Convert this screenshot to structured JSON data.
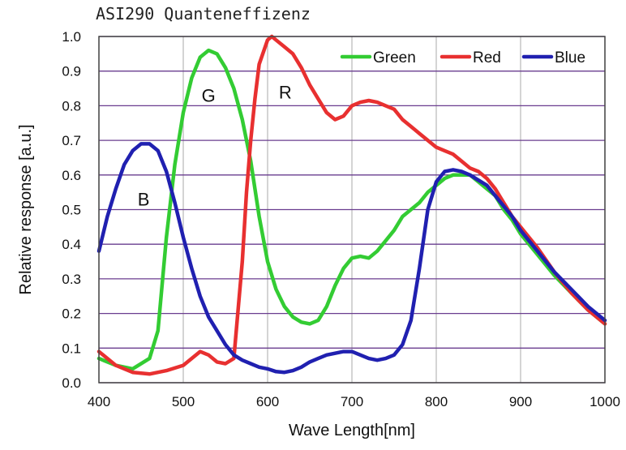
{
  "chart_data": {
    "type": "line",
    "title": "ASI290 Quanteneffizenz",
    "xlabel": "Wave Length[nm]",
    "ylabel": "Relative response [a.u.]",
    "xlim": [
      400,
      1000
    ],
    "ylim": [
      0,
      1.0
    ],
    "x_ticks": [
      "400",
      "500",
      "600",
      "700",
      "800",
      "900",
      "1000"
    ],
    "y_ticks": [
      "0.0",
      "0.1",
      "0.2",
      "0.3",
      "0.4",
      "0.5",
      "0.6",
      "0.7",
      "0.8",
      "0.9",
      "1.0"
    ],
    "grid": true,
    "legend_position": "top-right",
    "series": [
      {
        "name": "Green",
        "color": "#33cc33",
        "x": [
          400,
          420,
          440,
          460,
          470,
          480,
          490,
          500,
          510,
          520,
          530,
          540,
          550,
          560,
          570,
          580,
          590,
          600,
          610,
          620,
          630,
          640,
          650,
          660,
          670,
          680,
          690,
          700,
          710,
          720,
          730,
          740,
          750,
          760,
          770,
          780,
          790,
          800,
          810,
          820,
          830,
          840,
          850,
          860,
          870,
          880,
          890,
          900,
          920,
          940,
          960,
          980,
          1000
        ],
        "values": [
          0.07,
          0.05,
          0.04,
          0.07,
          0.15,
          0.42,
          0.63,
          0.78,
          0.88,
          0.94,
          0.96,
          0.95,
          0.91,
          0.85,
          0.76,
          0.64,
          0.48,
          0.35,
          0.27,
          0.22,
          0.19,
          0.175,
          0.17,
          0.18,
          0.22,
          0.28,
          0.33,
          0.36,
          0.365,
          0.36,
          0.38,
          0.41,
          0.44,
          0.48,
          0.5,
          0.52,
          0.55,
          0.57,
          0.59,
          0.6,
          0.6,
          0.6,
          0.58,
          0.56,
          0.54,
          0.5,
          0.47,
          0.43,
          0.37,
          0.31,
          0.26,
          0.21,
          0.17
        ]
      },
      {
        "name": "Red",
        "color": "#e83030",
        "x": [
          400,
          420,
          440,
          460,
          480,
          500,
          510,
          520,
          530,
          540,
          550,
          560,
          570,
          575,
          580,
          585,
          590,
          600,
          605,
          610,
          620,
          630,
          640,
          650,
          660,
          670,
          680,
          690,
          700,
          710,
          720,
          730,
          740,
          750,
          760,
          770,
          780,
          790,
          800,
          810,
          820,
          830,
          840,
          850,
          860,
          870,
          880,
          890,
          900,
          920,
          940,
          960,
          980,
          1000
        ],
        "values": [
          0.09,
          0.05,
          0.03,
          0.025,
          0.035,
          0.05,
          0.07,
          0.09,
          0.08,
          0.06,
          0.055,
          0.07,
          0.35,
          0.55,
          0.7,
          0.82,
          0.92,
          0.99,
          1.0,
          0.99,
          0.97,
          0.95,
          0.91,
          0.86,
          0.82,
          0.78,
          0.76,
          0.77,
          0.8,
          0.81,
          0.815,
          0.81,
          0.8,
          0.79,
          0.76,
          0.74,
          0.72,
          0.7,
          0.68,
          0.67,
          0.66,
          0.64,
          0.62,
          0.61,
          0.59,
          0.56,
          0.52,
          0.48,
          0.45,
          0.39,
          0.32,
          0.26,
          0.21,
          0.17
        ]
      },
      {
        "name": "Blue",
        "color": "#2020b0",
        "x": [
          400,
          410,
          420,
          430,
          440,
          450,
          460,
          470,
          480,
          490,
          500,
          510,
          520,
          530,
          540,
          550,
          560,
          570,
          580,
          590,
          600,
          610,
          620,
          630,
          640,
          650,
          660,
          670,
          680,
          690,
          700,
          710,
          720,
          730,
          740,
          750,
          760,
          770,
          780,
          790,
          800,
          810,
          820,
          830,
          840,
          850,
          860,
          870,
          880,
          890,
          900,
          920,
          940,
          960,
          980,
          1000
        ],
        "values": [
          0.38,
          0.48,
          0.56,
          0.63,
          0.67,
          0.69,
          0.69,
          0.67,
          0.61,
          0.52,
          0.42,
          0.33,
          0.25,
          0.19,
          0.15,
          0.11,
          0.08,
          0.065,
          0.055,
          0.045,
          0.04,
          0.032,
          0.03,
          0.035,
          0.045,
          0.06,
          0.07,
          0.08,
          0.085,
          0.09,
          0.09,
          0.08,
          0.07,
          0.065,
          0.07,
          0.08,
          0.11,
          0.18,
          0.33,
          0.5,
          0.58,
          0.61,
          0.615,
          0.61,
          0.6,
          0.585,
          0.57,
          0.54,
          0.51,
          0.48,
          0.44,
          0.38,
          0.32,
          0.27,
          0.22,
          0.18
        ]
      }
    ],
    "annotations": [
      {
        "text": "B",
        "x": 453,
        "y": 0.53
      },
      {
        "text": "G",
        "x": 530,
        "y": 0.83
      },
      {
        "text": "R",
        "x": 621,
        "y": 0.84
      }
    ]
  }
}
